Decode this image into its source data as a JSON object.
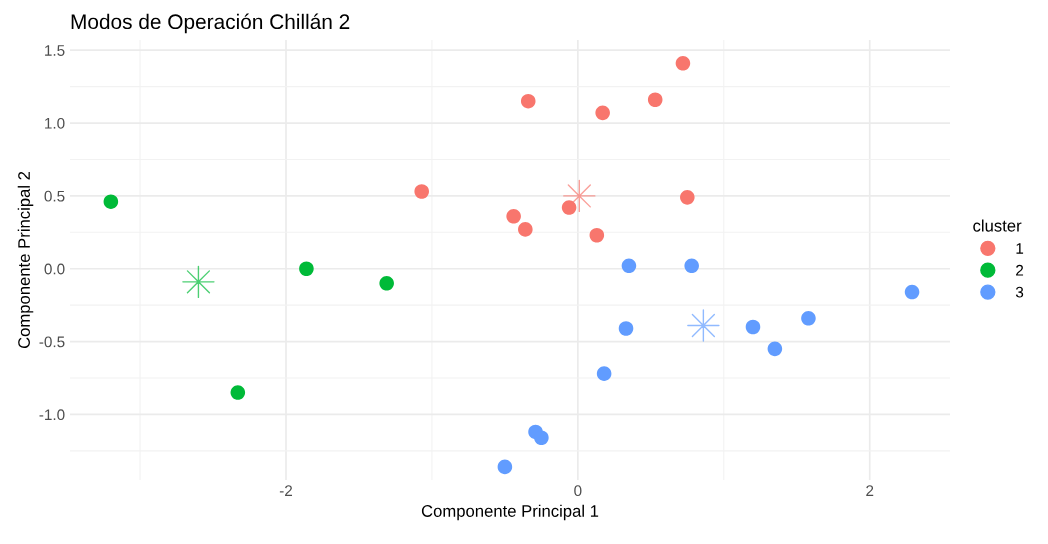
{
  "chart_data": {
    "type": "scatter",
    "title": "Modos de Operación Chillán 2",
    "xlabel": "Componente Principal 1",
    "ylabel": "Componente Principal 2",
    "legend_title": "cluster",
    "legend": "right",
    "grid": true,
    "marker": "circle",
    "xlim": [
      -3.48,
      2.55
    ],
    "ylim": [
      -1.45,
      1.57
    ],
    "xticks": [
      -2,
      0,
      2
    ],
    "yticks": [
      {
        "value": -1,
        "label": "-1.0"
      },
      -0.5,
      {
        "value": 0,
        "label": "0.0"
      },
      0.5,
      {
        "value": 1,
        "label": "1.0"
      },
      1.5
    ],
    "series": [
      {
        "name": "1",
        "color": "#f8766d",
        "x": [
          0.72,
          -0.34,
          0.53,
          0.17,
          -1.07,
          0.75,
          -0.44,
          -0.36,
          -0.06,
          0.13
        ],
        "values": [
          1.41,
          1.15,
          1.16,
          1.07,
          0.53,
          0.49,
          0.36,
          0.27,
          0.42,
          0.23
        ]
      },
      {
        "name": "2",
        "color": "#00ba38",
        "x": [
          -3.2,
          -1.86,
          -1.31,
          -2.33
        ],
        "values": [
          0.46,
          0.0,
          -0.1,
          -0.85
        ]
      },
      {
        "name": "3",
        "color": "#619cff",
        "x": [
          0.35,
          0.78,
          2.29,
          0.33,
          1.2,
          1.58,
          1.35,
          0.18,
          -0.29,
          -0.25,
          -0.5
        ],
        "values": [
          0.02,
          0.02,
          -0.16,
          -0.41,
          -0.4,
          -0.34,
          -0.55,
          -0.72,
          -1.12,
          -1.16,
          -1.36
        ]
      },
      {
        "color": "#f8766d",
        "marker": "star",
        "x": [
          0.01
        ],
        "values": [
          0.5
        ]
      },
      {
        "color": "#00ba38",
        "marker": "star",
        "x": [
          -2.6
        ],
        "values": [
          -0.09
        ]
      },
      {
        "color": "#619cff",
        "marker": "star",
        "x": [
          0.86
        ],
        "values": [
          -0.39
        ]
      }
    ]
  }
}
